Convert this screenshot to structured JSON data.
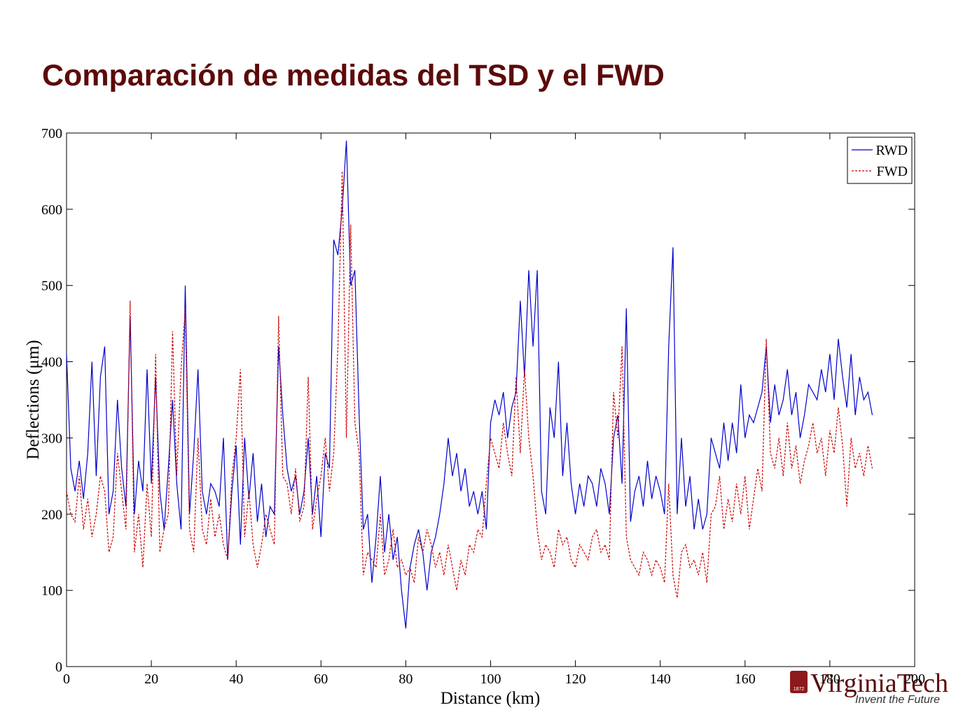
{
  "chart_data": {
    "type": "line",
    "title": "Comparación de medidas del TSD y el FWD",
    "x_label": "Distance (km)",
    "y_label": "Deflections (μm)",
    "xlim": [
      0,
      200
    ],
    "xticks": [
      0,
      20,
      40,
      60,
      80,
      100,
      120,
      140,
      160,
      180,
      200
    ],
    "ylim": [
      0,
      700
    ],
    "yticks": [
      0,
      100,
      200,
      300,
      400,
      500,
      600,
      700
    ],
    "grid": false,
    "legend": "upper right",
    "x": [
      0,
      1,
      2,
      3,
      4,
      5,
      6,
      7,
      8,
      9,
      10,
      11,
      12,
      13,
      14,
      15,
      16,
      17,
      18,
      19,
      20,
      21,
      22,
      23,
      24,
      25,
      26,
      27,
      28,
      29,
      30,
      31,
      32,
      33,
      34,
      35,
      36,
      37,
      38,
      39,
      40,
      41,
      42,
      43,
      44,
      45,
      46,
      47,
      48,
      49,
      50,
      51,
      52,
      53,
      54,
      55,
      56,
      57,
      58,
      59,
      60,
      61,
      62,
      63,
      64,
      65,
      66,
      67,
      68,
      69,
      70,
      71,
      72,
      73,
      74,
      75,
      76,
      77,
      78,
      79,
      80,
      81,
      82,
      83,
      84,
      85,
      86,
      87,
      88,
      89,
      90,
      91,
      92,
      93,
      94,
      95,
      96,
      97,
      98,
      99,
      100,
      101,
      102,
      103,
      104,
      105,
      106,
      107,
      108,
      109,
      110,
      111,
      112,
      113,
      114,
      115,
      116,
      117,
      118,
      119,
      120,
      121,
      122,
      123,
      124,
      125,
      126,
      127,
      128,
      129,
      130,
      131,
      132,
      133,
      134,
      135,
      136,
      137,
      138,
      139,
      140,
      141,
      142,
      143,
      144,
      145,
      146,
      147,
      148,
      149,
      150,
      151,
      152,
      153,
      154,
      155,
      156,
      157,
      158,
      159,
      160,
      161,
      162,
      163,
      164,
      165,
      166,
      167,
      168,
      169,
      170,
      171,
      172,
      173,
      174,
      175,
      176,
      177,
      178,
      179,
      180,
      181,
      182,
      183,
      184,
      185,
      186,
      187,
      188,
      189,
      190
    ],
    "series": [
      {
        "name": "RWD",
        "color": "#0000cc",
        "dash": "solid",
        "values": [
          410,
          260,
          230,
          270,
          220,
          280,
          400,
          250,
          380,
          420,
          200,
          230,
          350,
          260,
          210,
          460,
          200,
          270,
          230,
          390,
          240,
          380,
          230,
          180,
          260,
          350,
          240,
          180,
          500,
          200,
          280,
          390,
          230,
          200,
          240,
          230,
          210,
          300,
          140,
          230,
          290,
          160,
          300,
          220,
          280,
          190,
          240,
          170,
          210,
          200,
          420,
          330,
          260,
          230,
          250,
          200,
          230,
          300,
          200,
          250,
          170,
          280,
          260,
          560,
          540,
          600,
          690,
          500,
          520,
          330,
          180,
          200,
          110,
          170,
          250,
          150,
          200,
          140,
          170,
          100,
          50,
          130,
          160,
          180,
          150,
          100,
          150,
          170,
          200,
          240,
          300,
          250,
          280,
          230,
          260,
          210,
          230,
          200,
          230,
          180,
          320,
          350,
          330,
          360,
          300,
          340,
          360,
          480,
          380,
          520,
          420,
          520,
          230,
          200,
          340,
          300,
          400,
          250,
          320,
          240,
          200,
          240,
          210,
          250,
          240,
          210,
          260,
          240,
          200,
          300,
          330,
          240,
          470,
          190,
          230,
          250,
          210,
          270,
          220,
          250,
          230,
          200,
          420,
          550,
          200,
          300,
          210,
          250,
          180,
          220,
          180,
          200,
          300,
          280,
          260,
          320,
          270,
          320,
          280,
          370,
          300,
          330,
          320,
          340,
          360,
          420,
          320,
          370,
          330,
          350,
          390,
          330,
          360,
          300,
          330,
          370,
          360,
          350,
          390,
          360,
          410,
          350,
          430,
          380,
          340,
          410,
          330,
          380,
          350,
          360,
          330
        ]
      },
      {
        "name": "FWD",
        "color": "#cc0000",
        "dash": "dashed",
        "values": [
          230,
          200,
          190,
          250,
          180,
          220,
          170,
          200,
          250,
          230,
          150,
          170,
          280,
          230,
          180,
          480,
          150,
          200,
          130,
          240,
          170,
          410,
          150,
          180,
          200,
          440,
          250,
          390,
          470,
          180,
          150,
          300,
          180,
          160,
          220,
          170,
          200,
          160,
          140,
          250,
          300,
          390,
          170,
          230,
          160,
          130,
          160,
          200,
          180,
          160,
          460,
          250,
          240,
          200,
          260,
          190,
          210,
          380,
          180,
          220,
          250,
          300,
          230,
          280,
          420,
          650,
          300,
          580,
          320,
          280,
          120,
          150,
          140,
          130,
          200,
          120,
          140,
          180,
          130,
          140,
          120,
          130,
          110,
          170,
          150,
          180,
          160,
          130,
          150,
          120,
          160,
          130,
          100,
          140,
          120,
          160,
          150,
          180,
          170,
          240,
          300,
          280,
          260,
          320,
          280,
          250,
          380,
          280,
          390,
          300,
          250,
          180,
          140,
          160,
          150,
          130,
          180,
          160,
          170,
          140,
          130,
          160,
          150,
          140,
          170,
          180,
          150,
          160,
          140,
          360,
          300,
          420,
          170,
          140,
          130,
          120,
          150,
          140,
          120,
          140,
          130,
          110,
          240,
          120,
          90,
          150,
          160,
          130,
          140,
          120,
          150,
          110,
          200,
          210,
          250,
          180,
          220,
          190,
          240,
          200,
          250,
          180,
          220,
          260,
          230,
          430,
          280,
          260,
          300,
          250,
          320,
          260,
          290,
          240,
          270,
          290,
          320,
          280,
          300,
          250,
          310,
          280,
          340,
          290,
          210,
          300,
          260,
          280,
          250,
          290,
          260
        ]
      }
    ]
  },
  "logo": {
    "name": "VirginiaTech",
    "tagline": "Invent the Future",
    "year": "1872"
  }
}
